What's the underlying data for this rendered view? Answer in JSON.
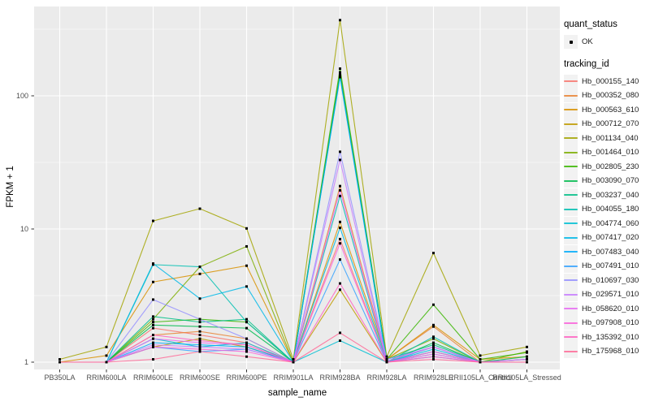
{
  "legend": {
    "quant_title": "quant_status",
    "ok_label": "OK",
    "tracking_title": "tracking_id"
  },
  "colors": {
    "panel_bg": "#EBEBEB",
    "grid": "#FFFFFF",
    "tick_text": "#4D4D4D",
    "tick_mark": "#333333",
    "point": "#000000",
    "legend_key_bg": "#F2F2F2"
  },
  "chart_data": {
    "type": "line",
    "xlabel": "sample_name",
    "ylabel": "FPKM + 1",
    "y_scale": "log10",
    "y_ticks": [
      1,
      10,
      100
    ],
    "y_minor_ticks": [
      3.162,
      31.62,
      316.2
    ],
    "ylim": [
      1,
      430
    ],
    "grid": "white major+minor on gray panel",
    "legend_position": "right",
    "marker": "small-black-point",
    "quant_status_values": [
      "OK"
    ],
    "categories": [
      "PB350LA",
      "RRIM600LA",
      "RRIM600LE",
      "RRIM600SE",
      "RRIM600PE",
      "RRIM901LA",
      "RRIM928BA",
      "RRIM928LA",
      "RRIM928LE",
      "RRII105LA_Control",
      "RRII105LA_Stressed"
    ],
    "series": [
      {
        "name": "Hb_000155_140",
        "color": "#F8766D",
        "values": [
          1,
          1,
          1.8,
          1.6,
          1.4,
          1,
          8.4,
          1,
          1.15,
          1,
          1
        ]
      },
      {
        "name": "Hb_000352_080",
        "color": "#EA8331",
        "values": [
          1,
          1,
          1.6,
          1.7,
          1.5,
          1,
          21,
          1.05,
          1.85,
          1,
          1.05
        ]
      },
      {
        "name": "Hb_000563_610",
        "color": "#D89000",
        "values": [
          1,
          1.12,
          4.0,
          4.6,
          5.3,
          1,
          11.3,
          1.05,
          1.9,
          1.05,
          1.1
        ]
      },
      {
        "name": "Hb_000712_070",
        "color": "#C09B00",
        "values": [
          1,
          1,
          1.3,
          1.5,
          1.3,
          1,
          3.5,
          1,
          1.2,
          1,
          1
        ]
      },
      {
        "name": "Hb_001134_040",
        "color": "#A3A500",
        "values": [
          1.05,
          1.3,
          11.5,
          14.2,
          10.1,
          1.05,
          370,
          1.1,
          6.6,
          1.12,
          1.3
        ]
      },
      {
        "name": "Hb_001464_010",
        "color": "#7CAE00",
        "values": [
          1,
          1,
          2.1,
          5.2,
          7.4,
          1,
          150,
          1.05,
          1.5,
          1,
          1.2
        ]
      },
      {
        "name": "Hb_002805_230",
        "color": "#39B600",
        "values": [
          1,
          1,
          2.0,
          2.1,
          2.0,
          1,
          160,
          1.05,
          2.7,
          1.05,
          1.18
        ]
      },
      {
        "name": "Hb_003090_070",
        "color": "#00BB4E",
        "values": [
          1,
          1,
          1.9,
          1.85,
          1.8,
          1,
          145,
          1,
          1.4,
          1,
          1.1
        ]
      },
      {
        "name": "Hb_003237_040",
        "color": "#00C087",
        "values": [
          1,
          1,
          2.2,
          2.0,
          2.1,
          1,
          140,
          1.05,
          1.35,
          1,
          1
        ]
      },
      {
        "name": "Hb_004055_180",
        "color": "#00C0B2",
        "values": [
          1,
          1,
          5.4,
          5.2,
          2.0,
          1,
          17.7,
          1,
          1.55,
          1,
          1
        ]
      },
      {
        "name": "Hb_004774_060",
        "color": "#00BFD3",
        "values": [
          1,
          1,
          1.5,
          1.3,
          1.4,
          1,
          1.45,
          1,
          1.3,
          1,
          1
        ]
      },
      {
        "name": "Hb_007417_020",
        "color": "#00B8E7",
        "values": [
          1,
          1,
          5.5,
          3.0,
          3.7,
          1,
          10.2,
          1,
          1.25,
          1,
          1
        ]
      },
      {
        "name": "Hb_007483_040",
        "color": "#00ACFC",
        "values": [
          1,
          1,
          1.4,
          1.35,
          1.3,
          1,
          138,
          1,
          1.2,
          1,
          1.05
        ]
      },
      {
        "name": "Hb_007491_010",
        "color": "#35A2FF",
        "values": [
          1,
          1,
          1.3,
          1.2,
          1.25,
          1,
          5.9,
          1,
          1.1,
          1,
          1
        ]
      },
      {
        "name": "Hb_010697_030",
        "color": "#9590FF",
        "values": [
          1,
          1,
          2.95,
          2.1,
          1.5,
          1,
          38,
          1.05,
          1.3,
          1,
          1
        ]
      },
      {
        "name": "Hb_029571_010",
        "color": "#C77CFF",
        "values": [
          1,
          1,
          1.35,
          1.3,
          1.25,
          1,
          33,
          1,
          1.15,
          1,
          1
        ]
      },
      {
        "name": "Hb_058620_010",
        "color": "#E76BF3",
        "values": [
          1,
          1,
          1.5,
          1.4,
          1.35,
          1,
          19.5,
          1.02,
          1.3,
          1,
          1.05
        ]
      },
      {
        "name": "Hb_097908_010",
        "color": "#FA62DB",
        "values": [
          1,
          1,
          1.3,
          1.25,
          1.2,
          1,
          7.8,
          1,
          1.2,
          1,
          1
        ]
      },
      {
        "name": "Hb_135392_010",
        "color": "#FF61C2",
        "values": [
          1,
          1,
          1.6,
          1.45,
          1.35,
          1,
          3.9,
          1,
          1.1,
          1,
          1
        ]
      },
      {
        "name": "Hb_175968_010",
        "color": "#FF6A98",
        "values": [
          1,
          1,
          1.05,
          1.2,
          1.1,
          1,
          1.66,
          1,
          1.05,
          1,
          1
        ]
      }
    ]
  }
}
